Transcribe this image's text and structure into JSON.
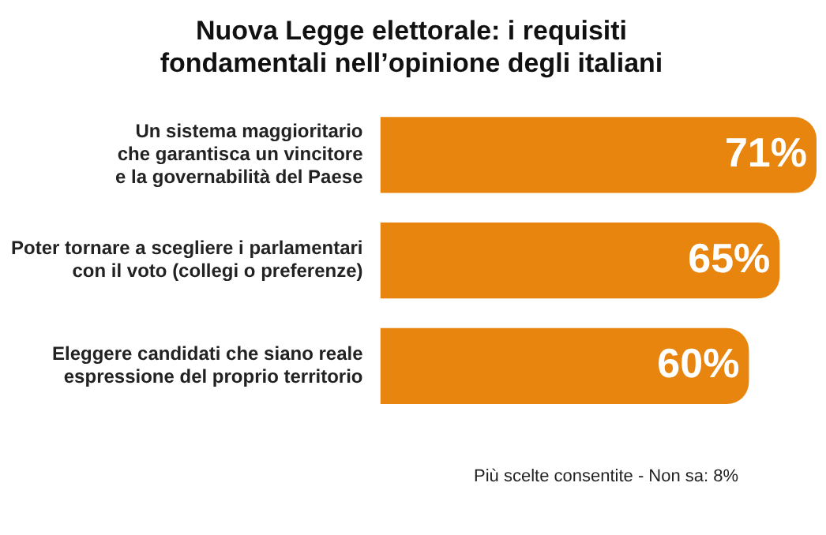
{
  "chart_data": {
    "type": "bar",
    "orientation": "horizontal",
    "title": "Nuova Legge elettorale: i requisiti\nfondamentali nell’opinione degli italiani",
    "categories": [
      "Un sistema maggioritario\nche garantisca un vincitore\ne la governabilità del Paese",
      "Poter tornare a scegliere i parlamentari\ncon il voto (collegi o preferenze)",
      "Eleggere candidati che siano reale\nespressione del proprio territorio"
    ],
    "values": [
      71,
      65,
      60
    ],
    "value_labels": [
      "71%",
      "65%",
      "60%"
    ],
    "color": "#e8850f",
    "annotations": [
      "Più scelte consentite - Non sa: 8%"
    ]
  }
}
